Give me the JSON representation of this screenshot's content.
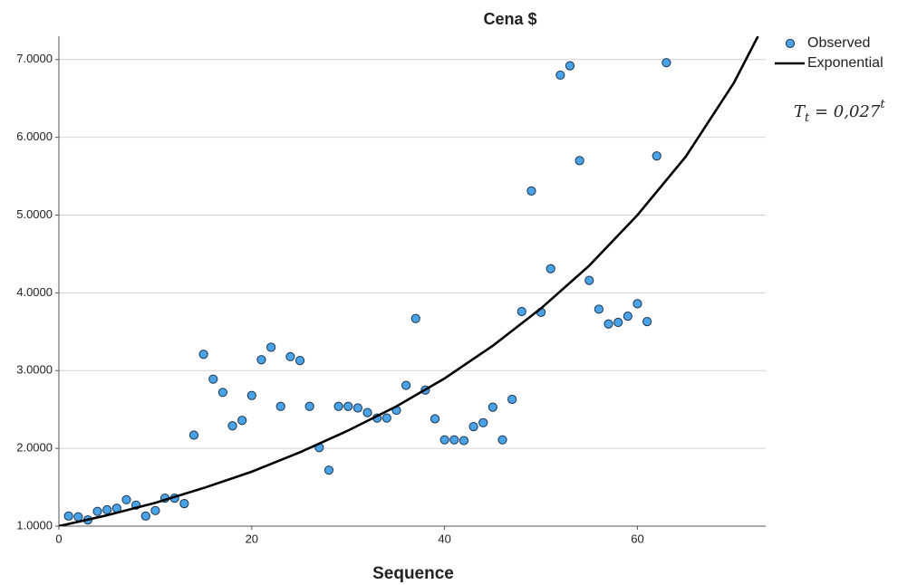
{
  "chart_data": {
    "type": "scatter",
    "title": "Cena $",
    "x_label": "Sequence",
    "xlim": [
      0,
      73.3
    ],
    "ylim": [
      1,
      7.3
    ],
    "xticks": [
      0,
      20,
      40,
      60
    ],
    "yticks": [
      {
        "value": 1,
        "label": "1.0000"
      },
      {
        "value": 2,
        "label": "2.0000"
      },
      {
        "value": 3,
        "label": "3.0000"
      },
      {
        "value": 4,
        "label": "4.0000"
      },
      {
        "value": 5,
        "label": "5.0000"
      },
      {
        "value": 6,
        "label": "6.0000"
      },
      {
        "value": 7,
        "label": "7.0000"
      }
    ],
    "grid": true,
    "legend": "top-right",
    "annotation": {
      "base": "T",
      "subscript": "t",
      "text": " = 0,027",
      "superscript": "t"
    },
    "series": [
      {
        "name": "Observed",
        "type": "scatter",
        "color": "#4aa3e6",
        "x": [
          1,
          2,
          3,
          4,
          5,
          6,
          7,
          8,
          9,
          10,
          11,
          12,
          13,
          14,
          15,
          16,
          17,
          18,
          19,
          20,
          21,
          22,
          23,
          24,
          25,
          26,
          27,
          28,
          29,
          30,
          31,
          32,
          33,
          34,
          35,
          36,
          37,
          38,
          39,
          40,
          41,
          42,
          43,
          44,
          45,
          46,
          47,
          48,
          49,
          50,
          51,
          52,
          53,
          54,
          55,
          56,
          57,
          58,
          59,
          60,
          61,
          62,
          63
        ],
        "values": [
          1.13,
          1.12,
          1.08,
          1.19,
          1.21,
          1.23,
          1.34,
          1.27,
          1.13,
          1.2,
          1.36,
          1.36,
          1.29,
          2.17,
          3.21,
          2.89,
          2.72,
          2.29,
          2.36,
          2.68,
          3.14,
          3.3,
          2.54,
          3.18,
          3.13,
          2.54,
          2.01,
          1.72,
          2.54,
          2.54,
          2.52,
          2.46,
          2.39,
          2.39,
          2.49,
          2.81,
          3.67,
          2.75,
          2.38,
          2.11,
          2.11,
          2.1,
          2.28,
          2.33,
          2.53,
          2.11,
          2.63,
          3.76,
          5.31,
          3.75,
          4.31,
          6.8,
          6.92,
          5.7,
          4.16,
          3.79,
          3.6,
          3.62,
          3.7,
          3.86,
          3.63,
          5.76,
          6.96
        ]
      },
      {
        "name": "Exponential",
        "type": "line",
        "color": "#000000",
        "x": [
          0,
          5,
          10,
          15,
          20,
          25,
          30,
          35,
          40,
          45,
          50,
          55,
          60,
          65,
          70,
          72.5
        ],
        "values": [
          1,
          1.14,
          1.3,
          1.49,
          1.7,
          1.95,
          2.23,
          2.54,
          2.9,
          3.32,
          3.8,
          4.35,
          5.0,
          5.75,
          6.7,
          7.3
        ]
      }
    ]
  }
}
